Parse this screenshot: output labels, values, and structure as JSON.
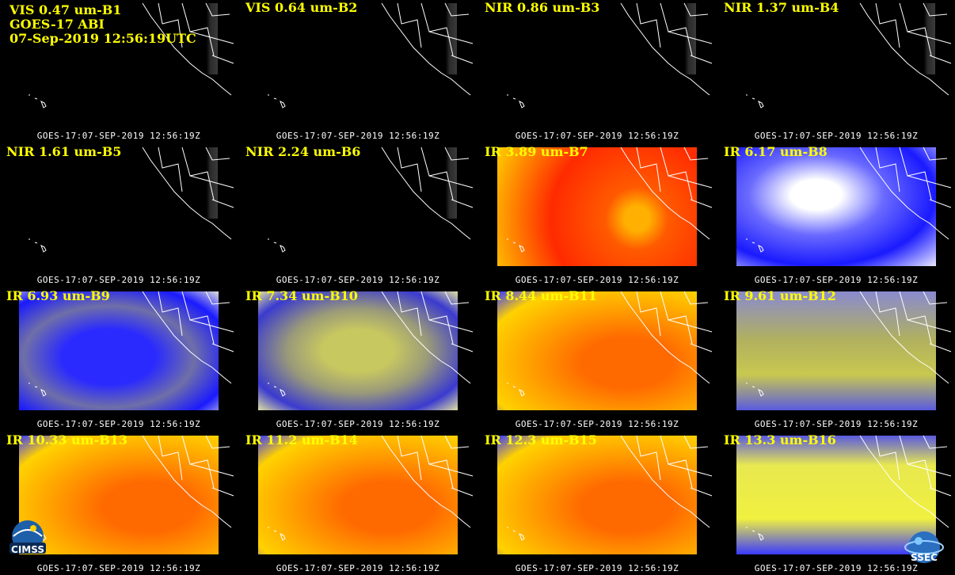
{
  "header": {
    "line1": "VIS 0.47 um-B1",
    "line2": "GOES-17 ABI",
    "line3": "07-Sep-2019 12:56:19UTC"
  },
  "stamp_text": "GOES-17:07-SEP-2019 12:56:19Z",
  "colors": {
    "label": "#ffff00",
    "background": "#000000",
    "ir_warm": "#ff3a00",
    "ir_mid": "#ffb000",
    "wv_blue": "#1a1aff",
    "wv_yellow": "#d8d858"
  },
  "panels": [
    {
      "label": "VIS 0.47 um-B1",
      "style": "dark"
    },
    {
      "label": "VIS 0.64 um-B2",
      "style": "dark"
    },
    {
      "label": "NIR 0.86 um-B3",
      "style": "dark"
    },
    {
      "label": "NIR 1.37 um-B4",
      "style": "dark"
    },
    {
      "label": "NIR 1.61 um-B5",
      "style": "dark"
    },
    {
      "label": "NIR 2.24 um-B6",
      "style": "dark"
    },
    {
      "label": "IR 3.89 um-B7",
      "style": "ir-red"
    },
    {
      "label": "IR 6.17 um-B8",
      "style": "wv-white"
    },
    {
      "label": "IR 6.93 um-B9",
      "style": "wv-blue"
    },
    {
      "label": "IR 7.34 um-B10",
      "style": "wv-olive"
    },
    {
      "label": "IR 8.44 um-B11",
      "style": "ir-orange"
    },
    {
      "label": "IR 9.61 um-B12",
      "style": "ozone"
    },
    {
      "label": "IR 10.33 um-B13",
      "style": "ir-orange"
    },
    {
      "label": "IR 11.2 um-B14",
      "style": "ir-orange"
    },
    {
      "label": "IR 12.3 um-B15",
      "style": "ir-orange"
    },
    {
      "label": "IR 13.3 um-B16",
      "style": "co2"
    }
  ],
  "logos": {
    "left": {
      "name": "cimss-logo",
      "text": "CIMSS"
    },
    "right": {
      "name": "ssec-logo",
      "text": "SSEC"
    }
  }
}
